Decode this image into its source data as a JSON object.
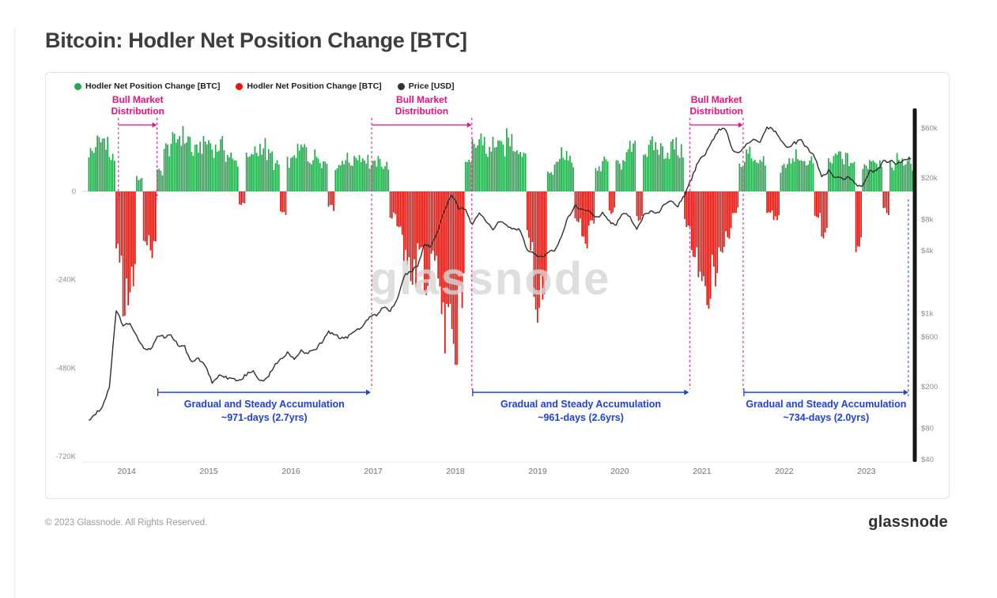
{
  "page": {
    "title": "Bitcoin: Hodler Net Position Change [BTC]",
    "footer": {
      "copyright": "© 2023 Glassnode. All Rights Reserved.",
      "brand": "glassnode"
    }
  },
  "chart": {
    "watermark": "glassnode",
    "legend": [
      {
        "label": "Hodler Net Position Change [BTC]",
        "color": "#23a94c",
        "icon": "dot"
      },
      {
        "label": "Hodler Net Position Change [BTC]",
        "color": "#e9150d",
        "icon": "dot"
      },
      {
        "label": "Price [USD]",
        "color": "#333333",
        "icon": "dot"
      }
    ],
    "colors": {
      "green": "#23a94c",
      "red": "#e9150d",
      "price": "#2e2e2e",
      "distribution": "#ee0f7e",
      "accumulation": "#2040d9",
      "watermark": "#d6d6d6",
      "axis_text": "#8c8c8c"
    },
    "axes": {
      "left": {
        "title": "Hodler Net Position Change [BTC]",
        "ticks": [
          {
            "label": "0",
            "value": 0
          },
          {
            "label": "-240K",
            "value": -240000
          },
          {
            "label": "-480K",
            "value": -480000
          },
          {
            "label": "-720K",
            "value": -720000
          }
        ]
      },
      "right": {
        "title": "Price [USD]",
        "scale": "log",
        "ticks": [
          {
            "label": "$60k",
            "value": 60000
          },
          {
            "label": "$20k",
            "value": 20000
          },
          {
            "label": "$8k",
            "value": 8000
          },
          {
            "label": "$4k",
            "value": 4000
          },
          {
            "label": "$1k",
            "value": 1000
          },
          {
            "label": "$600",
            "value": 600
          },
          {
            "label": "$200",
            "value": 200
          },
          {
            "label": "$80",
            "value": 80
          },
          {
            "label": "$40",
            "value": 40
          }
        ]
      },
      "x": {
        "ticks": [
          {
            "label": "2014",
            "value": 2014
          },
          {
            "label": "2015",
            "value": 2015
          },
          {
            "label": "2016",
            "value": 2016
          },
          {
            "label": "2017",
            "value": 2017
          },
          {
            "label": "2018",
            "value": 2018
          },
          {
            "label": "2019",
            "value": 2019
          },
          {
            "label": "2020",
            "value": 2020
          },
          {
            "label": "2021",
            "value": 2021
          },
          {
            "label": "2022",
            "value": 2022
          },
          {
            "label": "2023",
            "value": 2023
          }
        ]
      }
    },
    "annotations": {
      "distributions": [
        {
          "label_line1": "Bull Market",
          "label_line2": "Distribution",
          "start_year": 2013.9,
          "end_year": 2014.37,
          "lines_full_depth": false
        },
        {
          "label_line1": "Bull Market",
          "label_line2": "Distribution",
          "start_year": 2016.98,
          "end_year": 2018.2,
          "lines_full_depth": true
        },
        {
          "label_line1": "Bull Market",
          "label_line2": "Distribution",
          "start_year": 2020.85,
          "end_year": 2021.5,
          "lines_full_depth": true
        }
      ],
      "accumulations": [
        {
          "label_line1": "Gradual and Steady Accumulation",
          "label_line2": "~971-days (2.7yrs)",
          "start_year": 2014.37,
          "end_year": 2016.98,
          "right_edge_dash": false
        },
        {
          "label_line1": "Gradual and Steady Accumulation",
          "label_line2": "~961-days (2.6yrs)",
          "start_year": 2018.2,
          "end_year": 2020.85,
          "right_edge_dash": false
        },
        {
          "label_line1": "Gradual and Steady Accumulation",
          "label_line2": "~734-days (2.0yrs)",
          "start_year": 2021.5,
          "end_year": 2023.52,
          "right_edge_dash": true
        }
      ]
    }
  },
  "chart_data": {
    "type": "composite",
    "title": "Bitcoin: Hodler Net Position Change [BTC]",
    "x_axis": {
      "unit": "year",
      "start_year_decimal": 2013.54,
      "step_months": 1,
      "count": 121,
      "range": [
        2013.45,
        2023.55
      ]
    },
    "left_axis_range": [
      -720000,
      170000
    ],
    "right_axis_range_usd": [
      40,
      60000
    ],
    "right_axis_scale": "log",
    "series": [
      {
        "name": "Hodler Net Position Change [BTC]",
        "type": "bar",
        "unit": "BTC",
        "positive_color": "#23a94c",
        "negative_color": "#e9150d",
        "values": [
          120000,
          150000,
          160000,
          100000,
          -180000,
          -330000,
          -260000,
          40000,
          -160000,
          -170000,
          60000,
          130000,
          150000,
          170000,
          160000,
          120000,
          140000,
          150000,
          130000,
          140000,
          110000,
          90000,
          -40000,
          100000,
          120000,
          140000,
          110000,
          80000,
          -60000,
          90000,
          120000,
          130000,
          100000,
          110000,
          90000,
          -50000,
          80000,
          100000,
          90000,
          110000,
          100000,
          80000,
          90000,
          80000,
          -70000,
          -120000,
          -200000,
          -260000,
          -150000,
          -280000,
          -180000,
          -320000,
          -420000,
          -520000,
          -300000,
          80000,
          140000,
          160000,
          120000,
          150000,
          130000,
          160000,
          140000,
          120000,
          -150000,
          -370000,
          -300000,
          60000,
          100000,
          120000,
          90000,
          -80000,
          -150000,
          -100000,
          70000,
          90000,
          -60000,
          80000,
          110000,
          130000,
          -90000,
          120000,
          140000,
          130000,
          120000,
          140000,
          120000,
          -100000,
          -180000,
          -280000,
          -320000,
          -240000,
          -160000,
          -120000,
          -60000,
          80000,
          120000,
          100000,
          90000,
          -60000,
          -80000,
          70000,
          90000,
          110000,
          80000,
          100000,
          -70000,
          -120000,
          90000,
          110000,
          100000,
          90000,
          -160000,
          80000,
          100000,
          90000,
          -60000,
          80000,
          100000,
          90000,
          80000
        ]
      },
      {
        "name": "Price [USD]",
        "type": "line",
        "axis": "right",
        "log_scale": true,
        "unit": "USD",
        "color": "#2e2e2e",
        "values": [
          95,
          110,
          130,
          200,
          1100,
          760,
          815,
          620,
          455,
          450,
          625,
          600,
          620,
          505,
          480,
          340,
          375,
          320,
          220,
          255,
          245,
          235,
          230,
          260,
          285,
          230,
          237,
          315,
          360,
          430,
          370,
          437,
          417,
          450,
          530,
          670,
          625,
          575,
          610,
          700,
          745,
          965,
          970,
          1180,
          1080,
          1350,
          2300,
          2500,
          2875,
          4700,
          4350,
          6450,
          10000,
          14000,
          10200,
          10300,
          7000,
          9250,
          7500,
          6400,
          7750,
          7000,
          6600,
          6300,
          4000,
          3750,
          3450,
          3850,
          4100,
          5300,
          8550,
          10800,
          10000,
          9600,
          8300,
          9150,
          7550,
          7200,
          9350,
          8550,
          6450,
          8650,
          9450,
          9150,
          11350,
          11650,
          10800,
          13800,
          19700,
          29000,
          33100,
          45200,
          58800,
          57800,
          37300,
          35000,
          41500,
          47150,
          43800,
          61300,
          57000,
          46200,
          38500,
          43200,
          45550,
          37650,
          31800,
          19950,
          23300,
          20050,
          19400,
          20500,
          17150,
          16550,
          23100,
          23150,
          28450,
          29250,
          27200,
          30450,
          30200
        ]
      }
    ]
  }
}
